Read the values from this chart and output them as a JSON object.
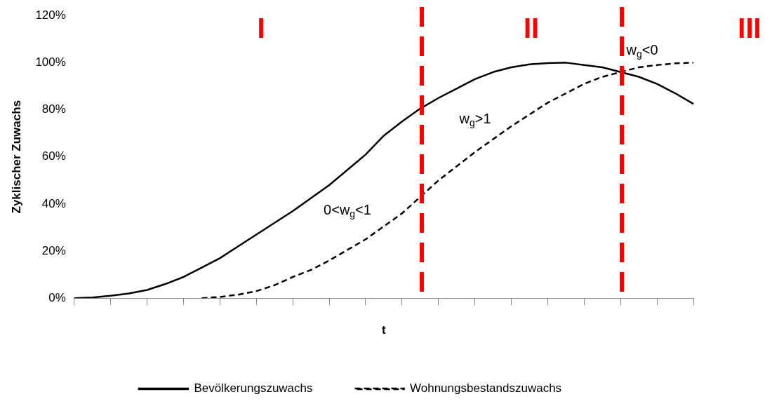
{
  "chart_data": {
    "type": "line",
    "xlabel": "t",
    "ylabel": "Zyklischer Zuwachs",
    "categories": [
      null,
      null,
      null,
      null,
      null,
      null,
      null,
      null,
      null,
      null,
      null,
      null,
      null,
      null,
      null,
      null,
      null,
      null,
      null,
      null,
      null,
      null,
      null,
      null,
      null,
      null,
      null,
      null,
      null,
      null,
      null,
      null,
      null,
      null,
      null
    ],
    "series": [
      {
        "name": "Bevölkerungszuwachs",
        "color": "#000000",
        "line_style": "solid",
        "values": [
          0,
          0.3,
          1,
          2,
          3.5,
          6,
          9,
          13,
          17,
          22,
          27,
          32,
          37,
          42.5,
          48,
          54.5,
          61,
          69,
          75,
          80.5,
          85,
          89,
          93,
          96,
          98,
          99.3,
          99.8,
          100,
          99,
          98,
          96,
          94,
          91,
          87,
          82.5
        ]
      },
      {
        "name": "Wohnungsbestandszuwachs",
        "color": "#000000",
        "line_style": "dashed",
        "values": [
          null,
          null,
          null,
          null,
          null,
          null,
          null,
          0,
          0.5,
          1.5,
          3,
          5.5,
          9,
          12,
          16,
          20.5,
          25,
          30.5,
          36,
          43,
          50,
          56,
          62,
          67.5,
          73,
          78,
          83,
          87,
          91,
          94,
          96,
          98,
          99,
          99.7,
          100
        ]
      }
    ],
    "ylim": [
      0,
      120
    ],
    "yticks": [
      {
        "value": 0,
        "label": "0%"
      },
      {
        "value": 20,
        "label": "20%"
      },
      {
        "value": 40,
        "label": "40%"
      },
      {
        "value": 60,
        "label": "60%"
      },
      {
        "value": 80,
        "label": "80%"
      },
      {
        "value": 100,
        "label": "100%"
      },
      {
        "value": 120,
        "label": "120%"
      }
    ],
    "annotations": [
      "I",
      "II",
      "III",
      "0<w$_{g}$<1",
      "w$_{g}$>1",
      "w$_{g}$<0"
    ],
    "grid": false,
    "legend": "bottom",
    "marker": "none"
  }
}
